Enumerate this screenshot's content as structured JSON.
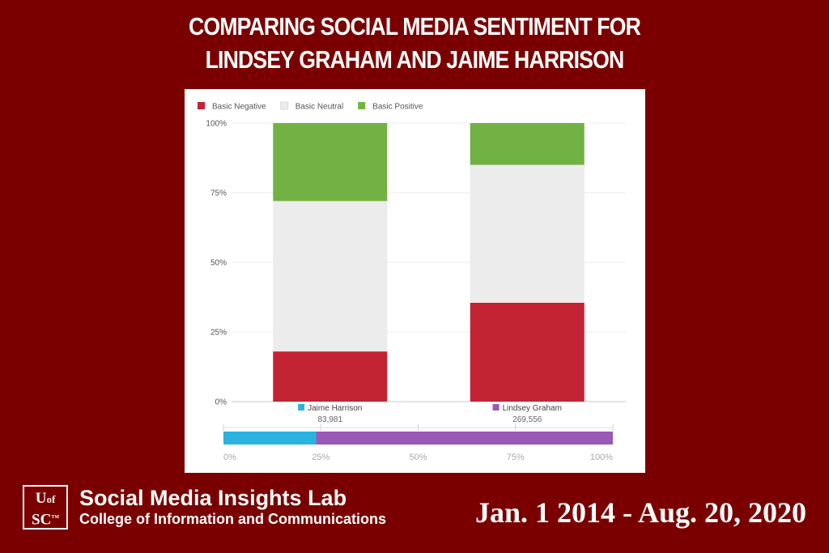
{
  "header": {
    "title_line1": "COMPARING SOCIAL MEDIA SENTIMENT FOR",
    "title_line2": "LINDSEY GRAHAM AND JAIME HARRISON"
  },
  "footer": {
    "logo_line1": "UofSC",
    "lab_name": "Social Media Insights Lab",
    "lab_subtitle": "College of Information and Communications",
    "date_range": "Jan. 1 2014 - Aug. 20, 2020"
  },
  "colors": {
    "background": "#7a0000",
    "negative": "#c32434",
    "neutral": "#ececec",
    "positive": "#72b244",
    "harrison": "#2bb3e0",
    "graham": "#9b59b6"
  },
  "chart_data": [
    {
      "type": "bar",
      "stacked": true,
      "categories": [
        "Jaime Harrison",
        "Lindsey Graham"
      ],
      "category_counts": [
        "83,981",
        "269,556"
      ],
      "series": [
        {
          "name": "Basic Negative",
          "values": [
            18,
            35.5
          ],
          "color": "#c32434"
        },
        {
          "name": "Basic Neutral",
          "values": [
            54,
            49.5
          ],
          "color": "#ececec"
        },
        {
          "name": "Basic Positive",
          "values": [
            28,
            15
          ],
          "color": "#72b244"
        }
      ],
      "ylim": [
        0,
        100
      ],
      "yticks": [
        "0%",
        "25%",
        "50%",
        "75%",
        "100%"
      ],
      "legend_position": "top-left",
      "grid": true
    },
    {
      "type": "bar",
      "orientation": "horizontal",
      "stacked": true,
      "categories": [
        "Jaime Harrison",
        "Lindsey Graham"
      ],
      "values": [
        23.8,
        76.2
      ],
      "colors": [
        "#2bb3e0",
        "#9b59b6"
      ],
      "xlim": [
        0,
        100
      ],
      "xticks": [
        "0%",
        "25%",
        "50%",
        "75%",
        "100%"
      ]
    }
  ]
}
